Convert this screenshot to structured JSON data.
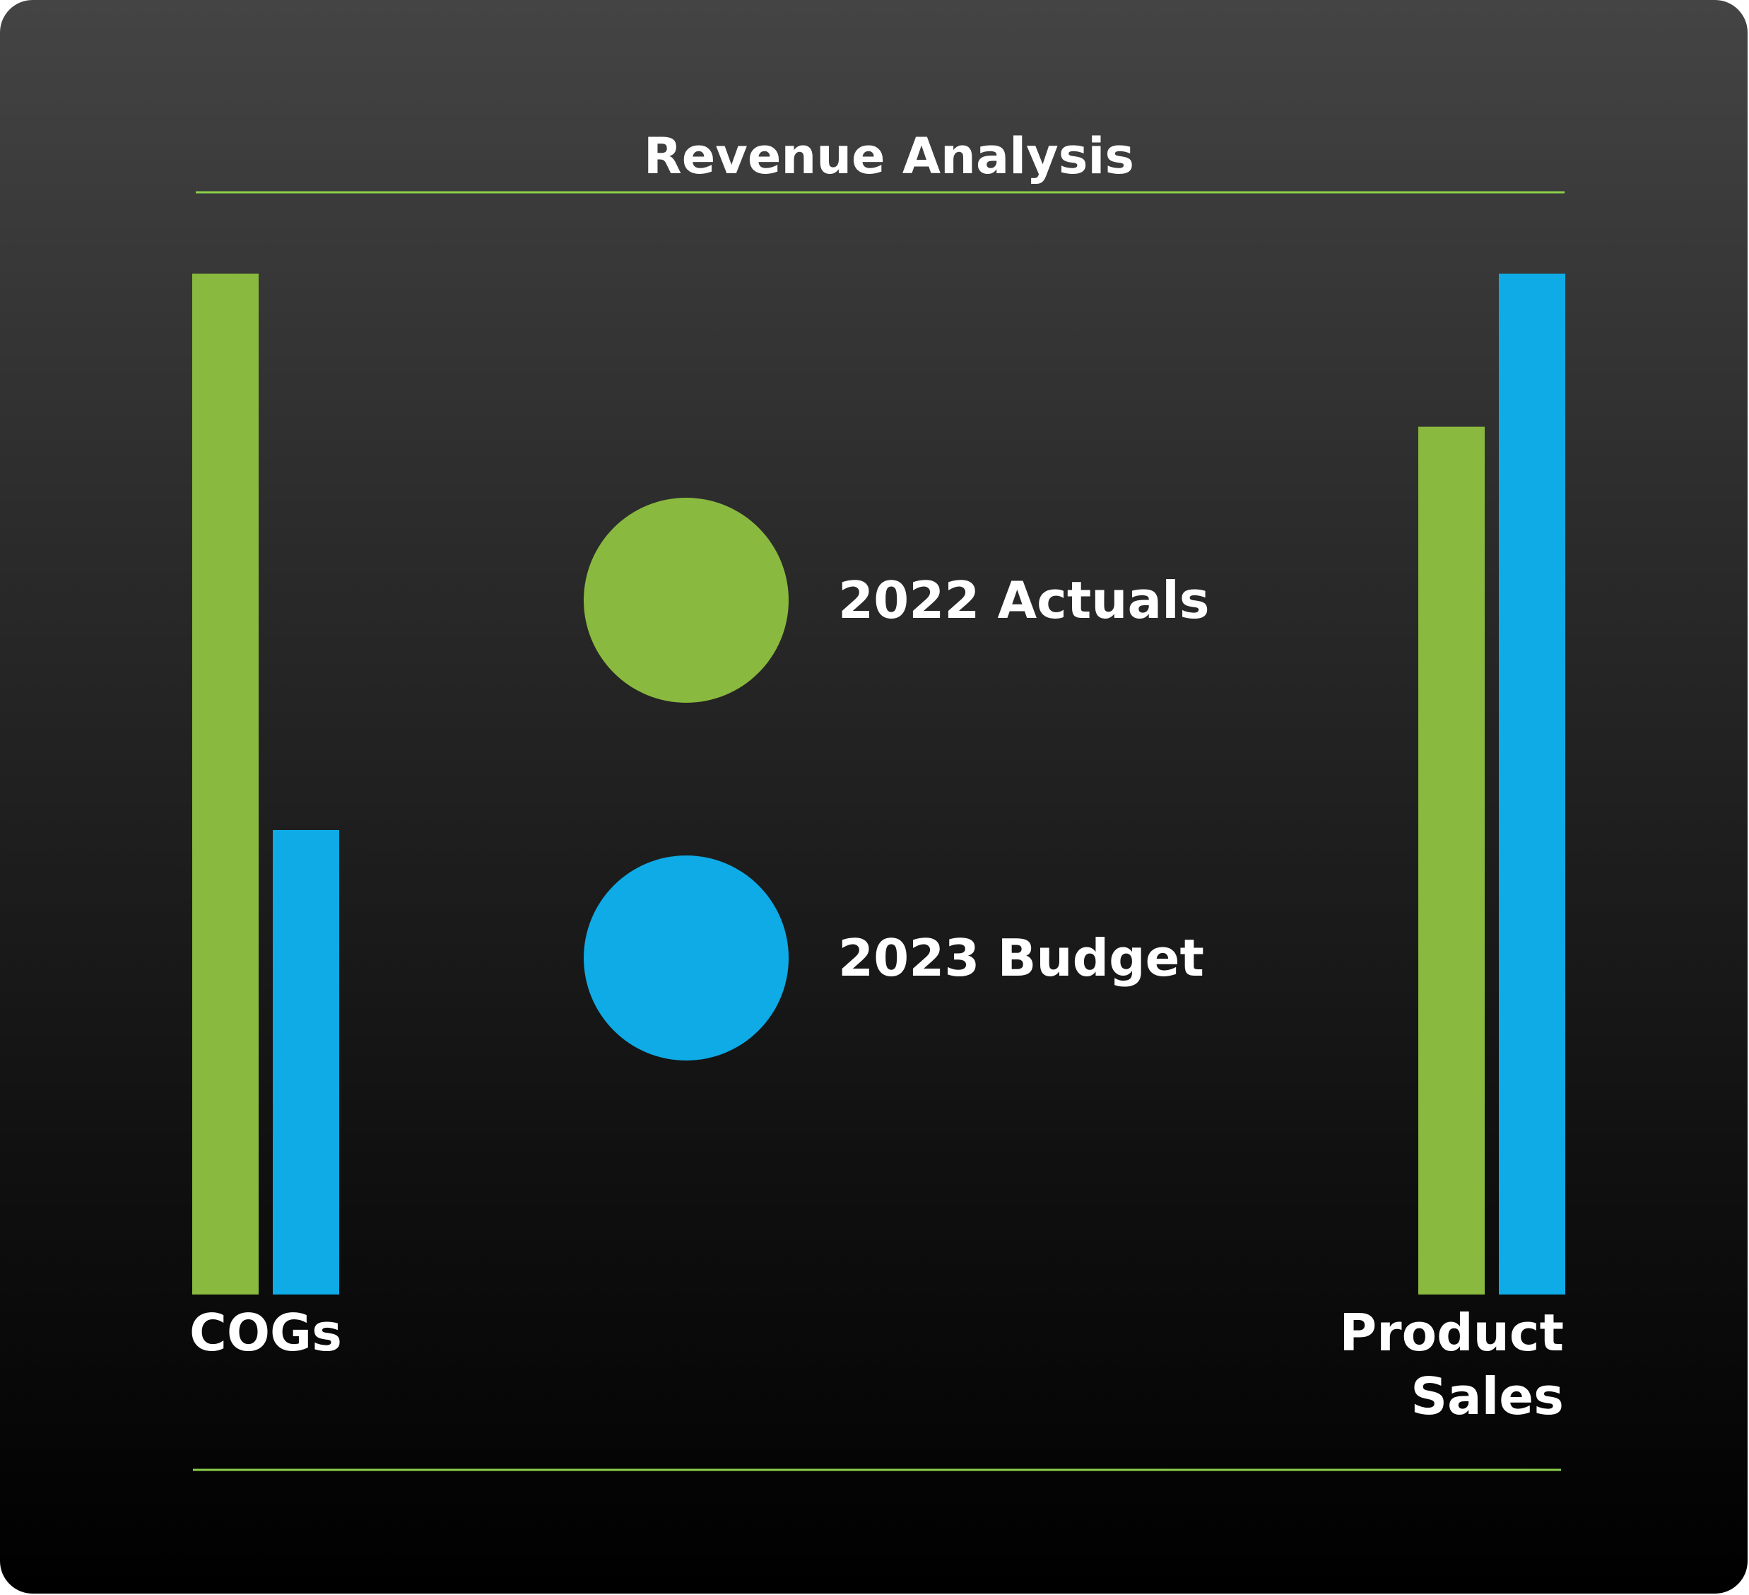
{
  "chart_data": {
    "type": "bar",
    "title": "Revenue Analysis",
    "categories": [
      "COGs",
      "Product Sales"
    ],
    "category_lines": [
      [
        "COGs"
      ],
      [
        "Product",
        "Sales"
      ]
    ],
    "series": [
      {
        "name": "2022 Actuals",
        "color": "#8ab93f",
        "values": [
          100,
          85
        ]
      },
      {
        "name": "2023 Budget",
        "color": "#0eabe6",
        "values": [
          45.5,
          100
        ]
      }
    ],
    "ylim": [
      0,
      100
    ],
    "grid": false,
    "legend_position": "center"
  }
}
